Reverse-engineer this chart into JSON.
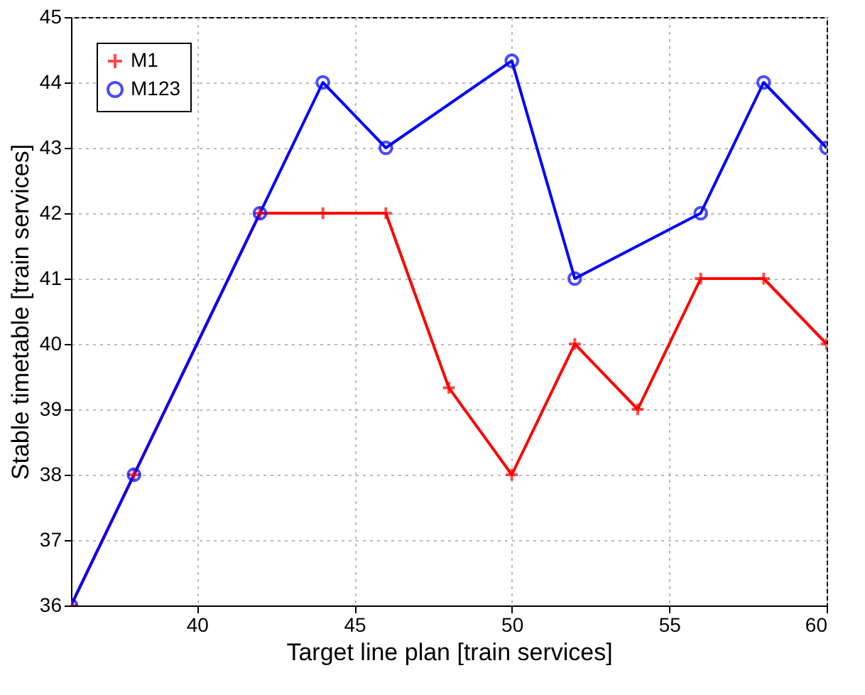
{
  "chart_data": {
    "type": "line",
    "xlabel": "Target line plan [train services]",
    "ylabel": "Stable timetable [train services]",
    "xlim": [
      36,
      60
    ],
    "xticks": [
      40,
      45,
      50,
      55,
      60
    ],
    "ylim": [
      36,
      45
    ],
    "yticks": [
      36,
      37,
      38,
      39,
      40,
      41,
      42,
      43,
      44,
      45
    ],
    "grid": true,
    "legend": "top left",
    "line_style": "solid",
    "series": [
      {
        "name": "M1",
        "color": "#ff0000",
        "marker": "cross",
        "x": [
          36,
          38,
          42,
          44,
          46,
          48,
          50,
          52,
          54,
          56,
          58,
          60
        ],
        "values": [
          36,
          38,
          42,
          42,
          42,
          39.33,
          38,
          40,
          39,
          41,
          41,
          40
        ]
      },
      {
        "name": "M123",
        "color": "#0000ff",
        "marker": "circle",
        "x": [
          36,
          38,
          42,
          44,
          46,
          50,
          52,
          56,
          58,
          60
        ],
        "values": [
          36,
          38,
          42,
          44,
          43,
          44.33,
          41,
          42,
          44,
          43
        ]
      }
    ]
  }
}
